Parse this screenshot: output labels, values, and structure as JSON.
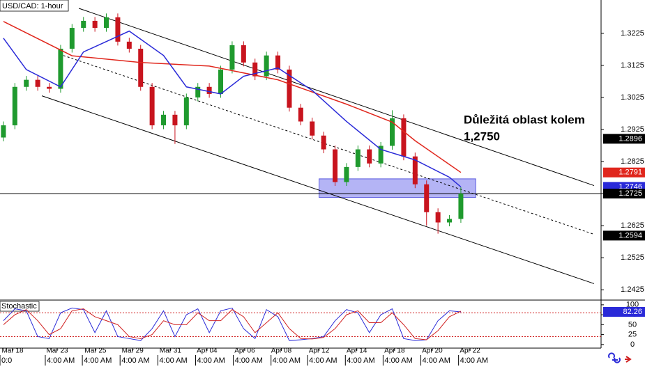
{
  "chart_data": {
    "type": "candlestick",
    "title": "USD/CAD: 1-hour",
    "xlim": [
      -0.3,
      52.26
    ],
    "ylim": [
      1.2395,
      1.3329
    ],
    "yticks": [
      1.3225,
      1.3125,
      1.3025,
      1.2925,
      1.2825,
      1.2725,
      1.2625,
      1.2525,
      1.2425
    ],
    "xticks": [
      {
        "value": 0.8,
        "label": "Mar 18"
      },
      {
        "value": 4.7,
        "label": "Mar 23"
      },
      {
        "value": 8.05,
        "label": "Mar 25"
      },
      {
        "value": 11.3,
        "label": "Mar 29"
      },
      {
        "value": 14.6,
        "label": "Mar 31"
      },
      {
        "value": 17.8,
        "label": "Apr 04"
      },
      {
        "value": 21.1,
        "label": "Apr 06"
      },
      {
        "value": 24.3,
        "label": "Apr 08"
      },
      {
        "value": 27.6,
        "label": "Apr 12"
      },
      {
        "value": 30.9,
        "label": "Apr 14"
      },
      {
        "value": 34.2,
        "label": "Apr 18"
      },
      {
        "value": 37.5,
        "label": "Apr 20"
      },
      {
        "value": 40.8,
        "label": "Apr 22"
      }
    ],
    "xticks2": [
      {
        "value": -0.3,
        "label": "0:0"
      },
      {
        "value": 3.66,
        "label": "4:00 AM"
      },
      {
        "value": 6.9,
        "label": "4:00 AM"
      },
      {
        "value": 10.2,
        "label": "4:00 AM"
      },
      {
        "value": 13.5,
        "label": "4:00 AM"
      },
      {
        "value": 16.8,
        "label": "4:00 AM"
      },
      {
        "value": 20.1,
        "label": "4:00 AM"
      },
      {
        "value": 23.4,
        "label": "4:00 AM"
      },
      {
        "value": 26.6,
        "label": "4:00 AM"
      },
      {
        "value": 29.9,
        "label": "4:00 AM"
      },
      {
        "value": 33.2,
        "label": "4:00 AM"
      },
      {
        "value": 36.5,
        "label": "4:00 AM"
      },
      {
        "value": 39.8,
        "label": "4:00 AM"
      }
    ],
    "open": [
      1.29,
      1.2938,
      1.3058,
      1.308,
      1.3058,
      1.3052,
      1.3177,
      1.3242,
      1.3264,
      1.3242,
      1.3275,
      1.3199,
      1.3177,
      1.3058,
      1.2938,
      1.2971,
      1.2938,
      1.3025,
      1.3058,
      1.3036,
      1.3112,
      1.3188,
      1.3134,
      1.3091,
      1.3156,
      1.3112,
      1.2993,
      1.295,
      1.2906,
      1.2863,
      1.2761,
      1.2808,
      1.2863,
      1.2819,
      1.2874,
      1.296,
      1.2841,
      1.2754,
      1.2667,
      1.2635,
      1.2646
    ],
    "high": [
      1.295,
      1.307,
      1.3092,
      1.3092,
      1.307,
      1.3189,
      1.3254,
      1.3276,
      1.3276,
      1.3287,
      1.3287,
      1.3211,
      1.3189,
      1.307,
      1.2983,
      1.2983,
      1.3037,
      1.307,
      1.307,
      1.3124,
      1.32,
      1.32,
      1.3146,
      1.3168,
      1.3168,
      1.3124,
      1.3005,
      1.2962,
      1.2918,
      1.2875,
      1.282,
      1.2875,
      1.2875,
      1.2886,
      1.2985,
      1.2972,
      1.2853,
      1.2766,
      1.2679,
      1.2658,
      1.2745
    ],
    "low": [
      1.2888,
      1.2926,
      1.3046,
      1.3046,
      1.304,
      1.304,
      1.3165,
      1.323,
      1.323,
      1.323,
      1.3187,
      1.3165,
      1.3046,
      1.2926,
      1.2926,
      1.288,
      1.2926,
      1.3013,
      1.3024,
      1.3024,
      1.31,
      1.3122,
      1.3079,
      1.3079,
      1.31,
      1.2981,
      1.2938,
      1.2894,
      1.2851,
      1.2749,
      1.2749,
      1.2796,
      1.2807,
      1.2807,
      1.2862,
      1.2829,
      1.2742,
      1.2625,
      1.26,
      1.2623,
      1.2634
    ],
    "close": [
      1.2938,
      1.3058,
      1.308,
      1.3058,
      1.3052,
      1.3177,
      1.3242,
      1.3264,
      1.3242,
      1.3275,
      1.3199,
      1.3177,
      1.3058,
      1.2938,
      1.2971,
      1.2938,
      1.3025,
      1.3058,
      1.3036,
      1.3112,
      1.3188,
      1.3134,
      1.3091,
      1.3156,
      1.3112,
      1.2993,
      1.295,
      1.2906,
      1.2863,
      1.2761,
      1.2808,
      1.2863,
      1.2819,
      1.2874,
      1.296,
      1.2841,
      1.2754,
      1.2667,
      1.2635,
      1.2646,
      1.2725
    ],
    "up_color": "#1f9a2e",
    "down_color": "#c8141e",
    "moving_averages": [
      {
        "color": "#e0261c",
        "x": [
          0,
          6,
          12,
          18,
          24,
          30,
          34,
          36,
          40
        ],
        "values": [
          1.3262,
          1.3155,
          1.3134,
          1.3123,
          1.308,
          1.3004,
          1.2948,
          1.289,
          1.2791
        ]
      },
      {
        "color": "#2a2ad8",
        "x": [
          0,
          2,
          5,
          7,
          11,
          14,
          16,
          19,
          21,
          24,
          27,
          30,
          33,
          36,
          39,
          40
        ],
        "values": [
          1.321,
          1.3112,
          1.3058,
          1.3167,
          1.3232,
          1.3156,
          1.3058,
          1.3036,
          1.3091,
          1.3117,
          1.3047,
          1.295,
          1.2863,
          1.283,
          1.2776,
          1.2746
        ]
      }
    ],
    "trendlines": [
      {
        "x": [
          6.6,
          51.65
        ],
        "values": [
          1.3303,
          1.275
        ],
        "dashed": false
      },
      {
        "x": [
          4.9,
          51.65
        ],
        "values": [
          1.316,
          1.2598
        ],
        "dashed": true
      },
      {
        "x": [
          3.36,
          51.65
        ],
        "values": [
          1.303,
          1.2444
        ],
        "dashed": false
      }
    ],
    "hline": {
      "value": 1.2725,
      "color": "#000000"
    },
    "zone": {
      "x": [
        27.6,
        41.3
      ],
      "y": [
        1.2771,
        1.2713
      ],
      "color": "#8c8cf0"
    },
    "annotation": [
      "Důležitá oblast kolem",
      "1,2750"
    ],
    "price_markers": [
      {
        "value": 1.2896,
        "color": "#000000"
      },
      {
        "value": 1.2791,
        "color": "#e0261c"
      },
      {
        "value": 1.2746,
        "color": "#2a2ad8"
      },
      {
        "value": 1.2725,
        "color": "#000000"
      },
      {
        "value": 1.2594,
        "color": "#000000"
      }
    ],
    "stochastic": {
      "title": "Stochastic",
      "ylim": [
        -9,
        112
      ],
      "yticks": [
        100,
        75,
        50,
        25,
        0
      ],
      "levels": [
        80,
        20
      ],
      "level_color": "#d02020",
      "series": [
        {
          "color": "#2a2ad8",
          "values": [
            60,
            90,
            85,
            20,
            15,
            80,
            92,
            88,
            30,
            85,
            20,
            15,
            10,
            40,
            85,
            20,
            75,
            90,
            30,
            85,
            92,
            40,
            15,
            88,
            70,
            10,
            12,
            15,
            20,
            60,
            88,
            80,
            30,
            75,
            90,
            15,
            10,
            12,
            60,
            85,
            82.26
          ]
        },
        {
          "color": "#d02020",
          "values": [
            50,
            75,
            88,
            60,
            25,
            40,
            85,
            90,
            70,
            60,
            50,
            20,
            15,
            25,
            60,
            50,
            50,
            80,
            60,
            60,
            88,
            70,
            30,
            55,
            80,
            40,
            15,
            14,
            18,
            40,
            75,
            85,
            55,
            55,
            80,
            50,
            15,
            12,
            35,
            70,
            84
          ]
        }
      ],
      "last_value": 82.26,
      "last_color": "#2a2ad8"
    }
  }
}
